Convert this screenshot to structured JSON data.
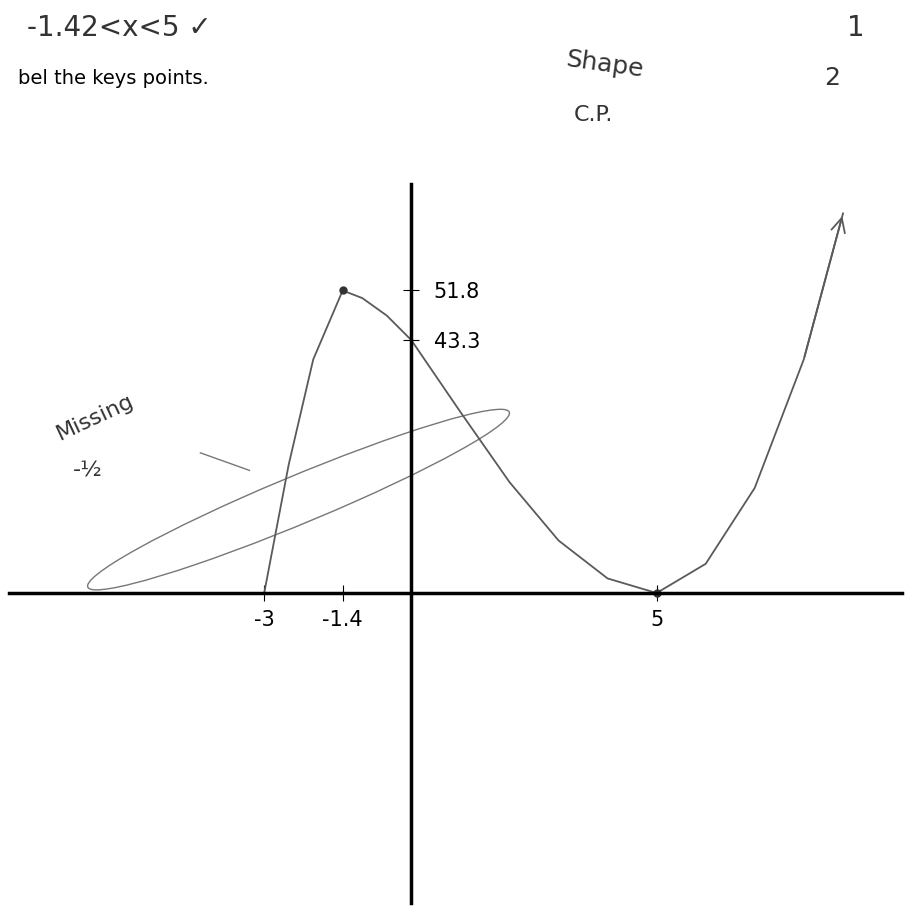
{
  "chart_data": {
    "type": "line",
    "color": "#5a5a5a",
    "line_style": "solid",
    "x": [
      -3,
      -2.5,
      -2,
      -1.4,
      -1,
      -0.5,
      0,
      1,
      2,
      3,
      4,
      5,
      6,
      7,
      8,
      8.8
    ],
    "values": [
      0,
      22,
      40,
      51.8,
      50.5,
      47.5,
      43.3,
      31,
      19,
      9,
      2.5,
      0,
      5,
      18,
      40,
      65
    ],
    "key_points": {
      "x": [
        -1.4,
        5
      ],
      "y": [
        51.8,
        0
      ]
    },
    "xlim": [
      -8.2,
      10
    ],
    "ylim": [
      -53,
      70
    ],
    "xticks": [
      -3,
      -1.4,
      5
    ],
    "yticks": [
      43.3,
      51.8
    ],
    "annotations": [
      "-1.42<x<5 ✓",
      "bel the keys points.",
      "Missing",
      "-½",
      "Shape",
      "C.P.",
      "1",
      "2"
    ]
  }
}
